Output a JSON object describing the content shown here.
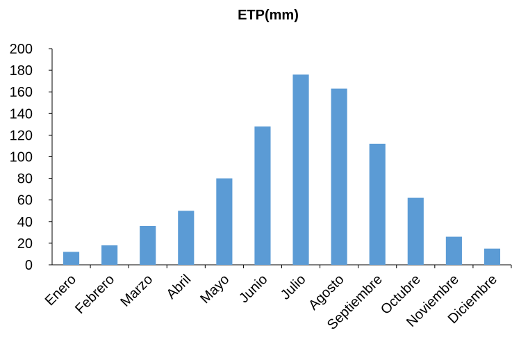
{
  "chart_data": {
    "type": "bar",
    "title": "ETP(mm)",
    "xlabel": "",
    "ylabel": "",
    "categories": [
      "Enero",
      "Febrero",
      "Marzo",
      "Abril",
      "Mayo",
      "Junio",
      "Julio",
      "Agosto",
      "Septiembre",
      "Octubre",
      "Noviembre",
      "Diciembre"
    ],
    "values": [
      12,
      18,
      36,
      50,
      80,
      128,
      176,
      163,
      112,
      62,
      26,
      15
    ],
    "ylim": [
      0,
      200
    ],
    "yticks": [
      "0",
      "20",
      "40",
      "60",
      "80",
      "100",
      "120",
      "140",
      "160",
      "180",
      "200"
    ],
    "bar_color": "#5B9BD5",
    "grid": false,
    "legend": "none"
  }
}
